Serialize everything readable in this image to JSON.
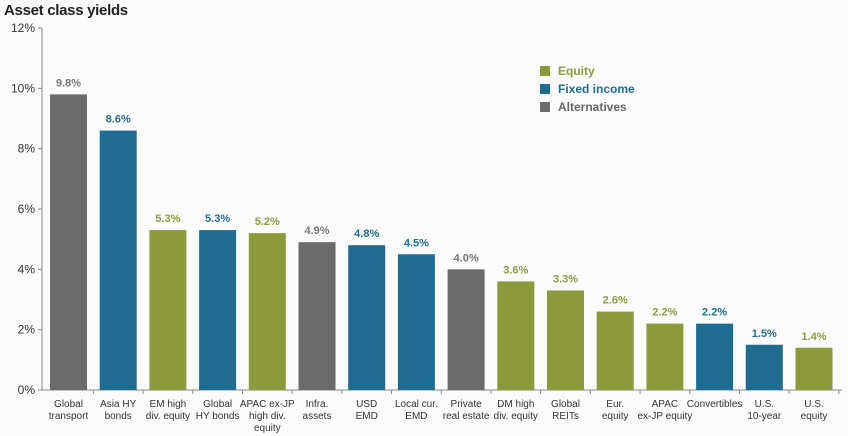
{
  "chart_data": {
    "type": "bar",
    "title": "Asset class yields",
    "xlabel": "",
    "ylabel": "",
    "ylim": [
      0,
      12
    ],
    "yticks": [
      "0%",
      "2%",
      "4%",
      "6%",
      "8%",
      "10%",
      "12%"
    ],
    "grid": false,
    "legend_position": "top-right",
    "legend": [
      {
        "name": "Equity",
        "color": "#8d9a3b"
      },
      {
        "name": "Fixed income",
        "color": "#1e6c91"
      },
      {
        "name": "Alternatives",
        "color": "#6b6b6b"
      }
    ],
    "categories": [
      [
        "Global",
        "transport"
      ],
      [
        "Asia HY",
        "bonds"
      ],
      [
        "EM high",
        "div. equity"
      ],
      [
        "Global",
        "HY bonds"
      ],
      [
        "APAC ex-JP",
        "high div.",
        "equity"
      ],
      [
        "Infra.",
        "assets"
      ],
      [
        "USD",
        "EMD"
      ],
      [
        "Local cur.",
        "EMD"
      ],
      [
        "Private",
        "real estate"
      ],
      [
        "DM high",
        "div. equity"
      ],
      [
        "Global",
        "REITs"
      ],
      [
        "Eur.",
        "equity"
      ],
      [
        "APAC",
        "ex-JP equity"
      ],
      [
        "Convertibles"
      ],
      [
        "U.S.",
        "10-year"
      ],
      [
        "U.S.",
        "equity"
      ]
    ],
    "values": [
      9.8,
      8.6,
      5.3,
      5.3,
      5.2,
      4.9,
      4.8,
      4.5,
      4.0,
      3.6,
      3.3,
      2.6,
      2.2,
      2.2,
      1.5,
      1.4
    ],
    "value_labels": [
      "9.8%",
      "8.6%",
      "5.3%",
      "5.3%",
      "5.2%",
      "4.9%",
      "4.8%",
      "4.5%",
      "4.0%",
      "3.6%",
      "3.3%",
      "2.6%",
      "2.2%",
      "2.2%",
      "1.5%",
      "1.4%"
    ],
    "groups": [
      "Alternatives",
      "Fixed income",
      "Equity",
      "Fixed income",
      "Equity",
      "Alternatives",
      "Fixed income",
      "Fixed income",
      "Alternatives",
      "Equity",
      "Equity",
      "Equity",
      "Equity",
      "Fixed income",
      "Fixed income",
      "Equity"
    ]
  }
}
